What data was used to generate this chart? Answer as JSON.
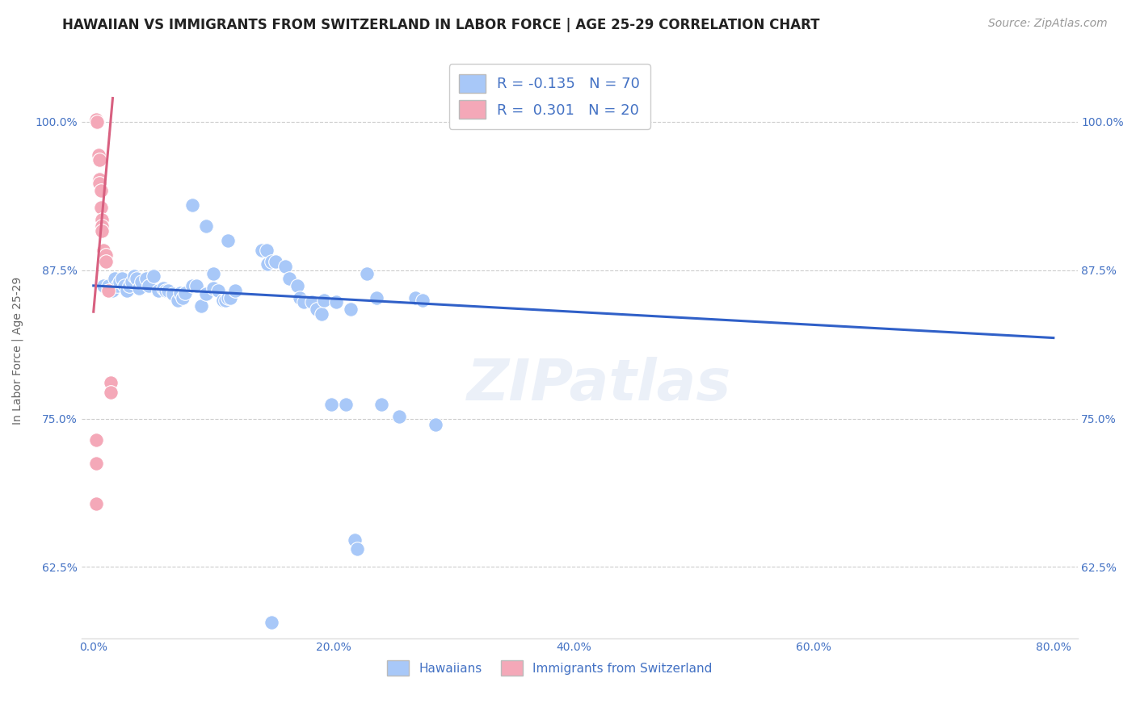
{
  "title": "HAWAIIAN VS IMMIGRANTS FROM SWITZERLAND IN LABOR FORCE | AGE 25-29 CORRELATION CHART",
  "source": "Source: ZipAtlas.com",
  "ylabel": "In Labor Force | Age 25-29",
  "x_tick_labels": [
    "0.0%",
    "20.0%",
    "40.0%",
    "60.0%",
    "80.0%"
  ],
  "x_tick_values": [
    0.0,
    0.2,
    0.4,
    0.6,
    0.8
  ],
  "y_tick_labels": [
    "62.5%",
    "75.0%",
    "87.5%",
    "100.0%"
  ],
  "y_tick_values": [
    0.625,
    0.75,
    0.875,
    1.0
  ],
  "xlim": [
    -0.01,
    0.82
  ],
  "ylim": [
    0.565,
    1.05
  ],
  "legend_blue_r": "-0.135",
  "legend_blue_n": "70",
  "legend_pink_r": "0.301",
  "legend_pink_n": "20",
  "blue_color": "#a8c8f8",
  "pink_color": "#f4a8b8",
  "trend_blue_color": "#3060c8",
  "trend_pink_color": "#d86080",
  "watermark": "ZIPatlas",
  "blue_dots": [
    [
      0.008,
      0.862
    ],
    [
      0.012,
      0.862
    ],
    [
      0.016,
      0.858
    ],
    [
      0.018,
      0.868
    ],
    [
      0.02,
      0.862
    ],
    [
      0.022,
      0.865
    ],
    [
      0.024,
      0.868
    ],
    [
      0.026,
      0.862
    ],
    [
      0.028,
      0.858
    ],
    [
      0.03,
      0.862
    ],
    [
      0.032,
      0.865
    ],
    [
      0.034,
      0.87
    ],
    [
      0.036,
      0.868
    ],
    [
      0.038,
      0.86
    ],
    [
      0.04,
      0.865
    ],
    [
      0.044,
      0.868
    ],
    [
      0.046,
      0.862
    ],
    [
      0.05,
      0.87
    ],
    [
      0.054,
      0.858
    ],
    [
      0.058,
      0.86
    ],
    [
      0.06,
      0.858
    ],
    [
      0.062,
      0.858
    ],
    [
      0.066,
      0.855
    ],
    [
      0.07,
      0.85
    ],
    [
      0.072,
      0.856
    ],
    [
      0.074,
      0.852
    ],
    [
      0.076,
      0.856
    ],
    [
      0.082,
      0.862
    ],
    [
      0.086,
      0.862
    ],
    [
      0.09,
      0.845
    ],
    [
      0.094,
      0.855
    ],
    [
      0.1,
      0.86
    ],
    [
      0.104,
      0.858
    ],
    [
      0.108,
      0.85
    ],
    [
      0.11,
      0.85
    ],
    [
      0.112,
      0.852
    ],
    [
      0.114,
      0.852
    ],
    [
      0.118,
      0.858
    ],
    [
      0.1,
      0.872
    ],
    [
      0.082,
      0.93
    ],
    [
      0.094,
      0.912
    ],
    [
      0.112,
      0.9
    ],
    [
      0.14,
      0.892
    ],
    [
      0.144,
      0.892
    ],
    [
      0.145,
      0.88
    ],
    [
      0.148,
      0.882
    ],
    [
      0.152,
      0.882
    ],
    [
      0.16,
      0.878
    ],
    [
      0.163,
      0.868
    ],
    [
      0.17,
      0.862
    ],
    [
      0.172,
      0.852
    ],
    [
      0.175,
      0.848
    ],
    [
      0.182,
      0.848
    ],
    [
      0.186,
      0.842
    ],
    [
      0.19,
      0.838
    ],
    [
      0.192,
      0.85
    ],
    [
      0.198,
      0.762
    ],
    [
      0.202,
      0.848
    ],
    [
      0.21,
      0.762
    ],
    [
      0.214,
      0.842
    ],
    [
      0.218,
      0.648
    ],
    [
      0.22,
      0.64
    ],
    [
      0.228,
      0.872
    ],
    [
      0.236,
      0.852
    ],
    [
      0.24,
      0.762
    ],
    [
      0.255,
      0.752
    ],
    [
      0.268,
      0.852
    ],
    [
      0.274,
      0.85
    ],
    [
      0.285,
      0.745
    ],
    [
      0.148,
      0.578
    ]
  ],
  "pink_dots": [
    [
      0.002,
      1.002
    ],
    [
      0.003,
      1.0
    ],
    [
      0.004,
      0.972
    ],
    [
      0.005,
      0.968
    ],
    [
      0.005,
      0.952
    ],
    [
      0.005,
      0.948
    ],
    [
      0.006,
      0.942
    ],
    [
      0.006,
      0.928
    ],
    [
      0.007,
      0.918
    ],
    [
      0.007,
      0.912
    ],
    [
      0.007,
      0.908
    ],
    [
      0.008,
      0.892
    ],
    [
      0.01,
      0.888
    ],
    [
      0.01,
      0.882
    ],
    [
      0.012,
      0.858
    ],
    [
      0.014,
      0.78
    ],
    [
      0.014,
      0.772
    ],
    [
      0.002,
      0.732
    ],
    [
      0.002,
      0.712
    ],
    [
      0.002,
      0.678
    ]
  ],
  "blue_trend_x": [
    0.0,
    0.8
  ],
  "blue_trend_y": [
    0.862,
    0.818
  ],
  "pink_trend_x": [
    0.0,
    0.016
  ],
  "pink_trend_y": [
    0.84,
    1.02
  ],
  "title_fontsize": 12,
  "axis_label_fontsize": 10,
  "tick_fontsize": 10,
  "legend_fontsize": 13,
  "source_fontsize": 10,
  "watermark_fontsize": 52,
  "watermark_alpha": 0.1,
  "background_color": "#ffffff",
  "grid_color": "#cccccc",
  "axis_color": "#4472c4"
}
